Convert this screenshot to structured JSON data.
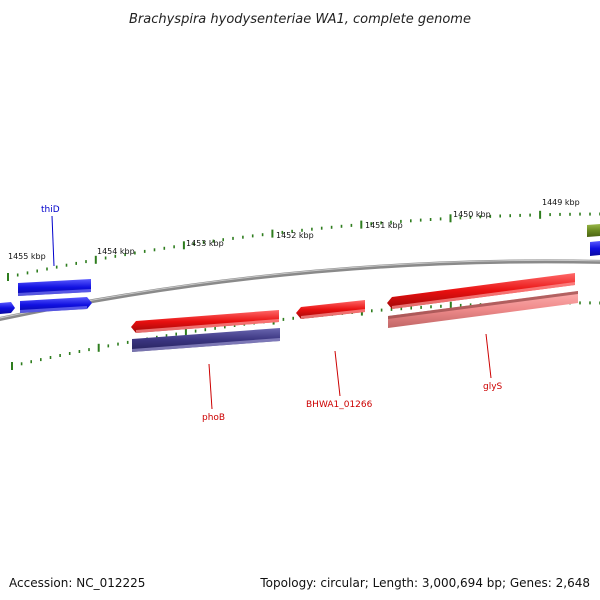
{
  "title": "Brachyspira hyodysenteriae WA1, complete genome",
  "footer": {
    "accession": "Accession: NC_012225",
    "stats": "Topology: circular; Length: 3,000,694 bp; Genes: 2,648"
  },
  "scale_labels": [
    "1455 kbp",
    "1454 kbp",
    "1453 kbp",
    "1452 kbp",
    "1451 kbp",
    "1450 kbp",
    "1449 kbp"
  ],
  "gene_labels": {
    "thiD": "thiD",
    "phoB": "phoB",
    "BHWA1_01266": "BHWA1_01266",
    "glyS": "glyS"
  },
  "colors": {
    "backbone": "#808080",
    "tick": "#2e7d1e",
    "blue_gene": "#1010e0",
    "red_gene": "#e01010",
    "navy_gene": "#3a3580",
    "pink_gene": "#ee8a8a",
    "olive_gene": "#6a8a20",
    "label_blue": "#0000cc",
    "label_red": "#cc0000"
  }
}
